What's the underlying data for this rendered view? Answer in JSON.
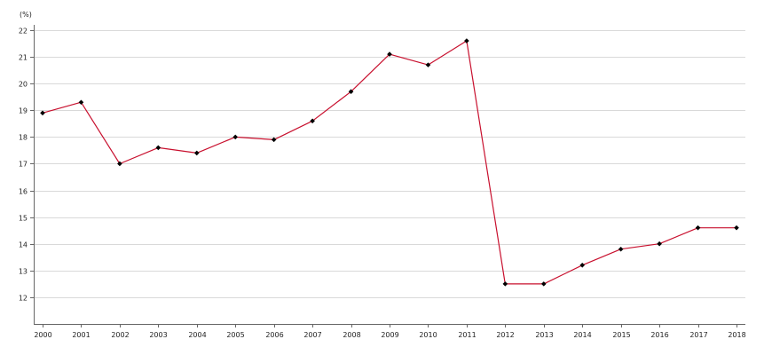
{
  "chart_data": {
    "type": "line",
    "title": "",
    "unit_label": "(%)",
    "xlabel": "",
    "ylabel": "",
    "x": [
      "2000",
      "2001",
      "2002",
      "2003",
      "2004",
      "2005",
      "2006",
      "2007",
      "2008",
      "2009",
      "2010",
      "2011",
      "2012",
      "2013",
      "2014",
      "2015",
      "2016",
      "2017",
      "2018"
    ],
    "series": [
      {
        "values": [
          18.9,
          19.3,
          17.0,
          17.6,
          17.4,
          18.0,
          17.9,
          18.6,
          19.7,
          21.1,
          20.7,
          21.6,
          12.5,
          12.5,
          13.2,
          13.8,
          14.0,
          14.6,
          14.6
        ],
        "color": "#c8102e",
        "marker_color": "#000000"
      }
    ],
    "yticks": [
      "12",
      "13",
      "14",
      "15",
      "16",
      "17",
      "18",
      "19",
      "20",
      "21",
      "22"
    ],
    "ylim": [
      11,
      22
    ],
    "grid": true,
    "legend": "none",
    "colors": {
      "line": "#c8102e",
      "marker": "#000000",
      "grid": "#d9d9d9",
      "axis": "#666666"
    }
  }
}
